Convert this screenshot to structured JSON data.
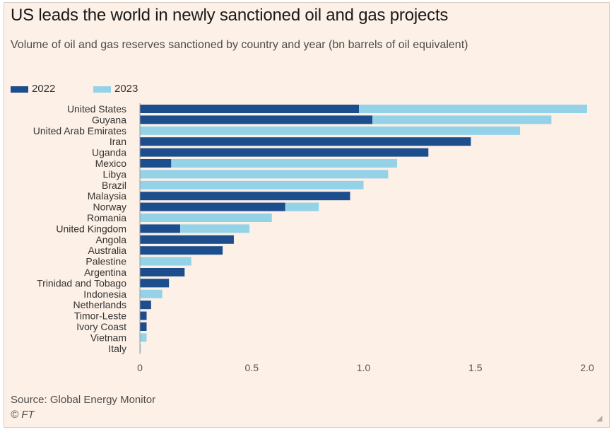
{
  "header": {
    "title": "US leads the world in newly sanctioned oil and gas projects",
    "subtitle": "Volume of oil and gas reserves sanctioned by country and year (bn barrels of oil equivalent)"
  },
  "footer": {
    "source": "Source: Global Energy Monitor",
    "credit": "© FT"
  },
  "colors": {
    "background": "#fdf0e6",
    "series_2022": "#1c4d8c",
    "series_2023": "#94d2e8",
    "axis": "#999999"
  },
  "chart_data": {
    "type": "bar",
    "orientation": "horizontal",
    "stacked": true,
    "title": "US leads the world in newly sanctioned oil and gas projects",
    "subtitle": "Volume of oil and gas reserves sanctioned by country and year (bn barrels of oil equivalent)",
    "xlabel": "",
    "ylabel": "",
    "xlim": [
      0,
      2.0
    ],
    "x_ticks": [
      0,
      0.5,
      1.0,
      1.5,
      2.0
    ],
    "x_tick_labels": [
      "0",
      "0.5",
      "1.0",
      "1.5",
      "2.0"
    ],
    "grid": false,
    "legend_position": "top-left",
    "categories": [
      "United States",
      "Guyana",
      "United Arab Emirates",
      "Iran",
      "Uganda",
      "Mexico",
      "Libya",
      "Brazil",
      "Malaysia",
      "Norway",
      "Romania",
      "United Kingdom",
      "Angola",
      "Australia",
      "Palestine",
      "Argentina",
      "Trinidad and Tobago",
      "Indonesia",
      "Netherlands",
      "Timor-Leste",
      "Ivory Coast",
      "Vietnam",
      "Italy"
    ],
    "series": [
      {
        "name": "2022",
        "color": "#1c4d8c",
        "values": [
          0.98,
          1.04,
          0,
          1.48,
          1.29,
          0.14,
          0,
          0,
          0.94,
          0.65,
          0,
          0.18,
          0.42,
          0.37,
          0,
          0.2,
          0.13,
          0,
          0.05,
          0.03,
          0.03,
          0,
          0
        ]
      },
      {
        "name": "2023",
        "color": "#94d2e8",
        "values": [
          1.02,
          0.8,
          1.7,
          0,
          0,
          1.01,
          1.11,
          1.0,
          0,
          0.15,
          0.59,
          0.31,
          0,
          0,
          0.23,
          0,
          0,
          0.1,
          0,
          0,
          0,
          0.03,
          0.004
        ]
      }
    ]
  }
}
